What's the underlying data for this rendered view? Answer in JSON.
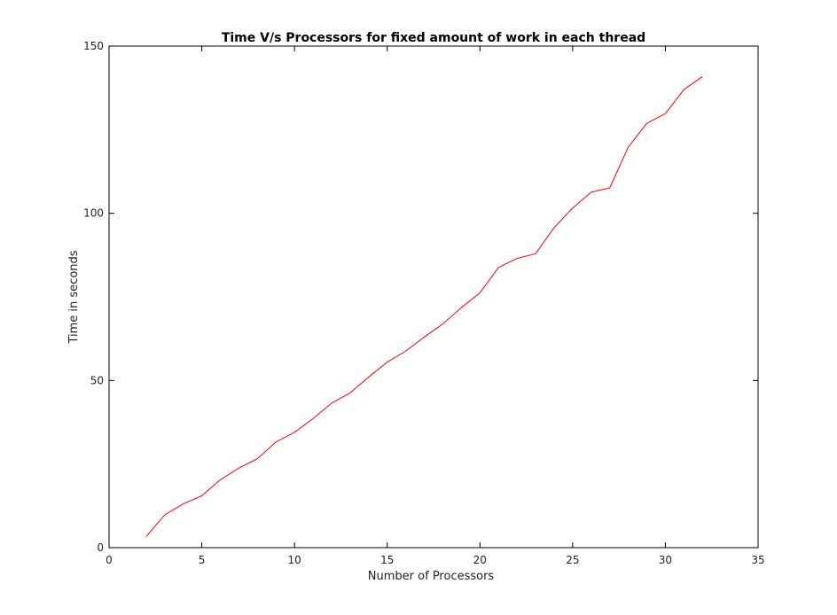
{
  "chart_data": {
    "type": "line",
    "title": "Time V/s Processors for fixed amount of work in each thread",
    "xlabel": "Number of Processors",
    "ylabel": "Time in  seconds",
    "xlim": [
      0,
      35
    ],
    "ylim": [
      0,
      150
    ],
    "xticks": [
      "0",
      "5",
      "10",
      "15",
      "20",
      "25",
      "30",
      "35"
    ],
    "yticks": [
      "0",
      "50",
      "100",
      "150"
    ],
    "grid": false,
    "series": [
      {
        "color": "#ff0000",
        "x": [
          2,
          3,
          4,
          5,
          6,
          7,
          8,
          9,
          10,
          11,
          12,
          13,
          14,
          15,
          16,
          17,
          18,
          19,
          20,
          21,
          22,
          23,
          24,
          25,
          26,
          27,
          28,
          29,
          30,
          31,
          32
        ],
        "y": [
          3.3,
          9.8,
          13.1,
          15.5,
          20.3,
          23.8,
          26.6,
          31.6,
          34.5,
          38.6,
          43.2,
          46.3,
          51.0,
          55.5,
          58.8,
          63.0,
          66.9,
          71.8,
          76.2,
          83.8,
          86.5,
          87.9,
          95.7,
          101.6,
          106.3,
          107.6,
          119.8,
          126.9,
          129.8,
          137.0,
          140.9
        ]
      }
    ]
  }
}
